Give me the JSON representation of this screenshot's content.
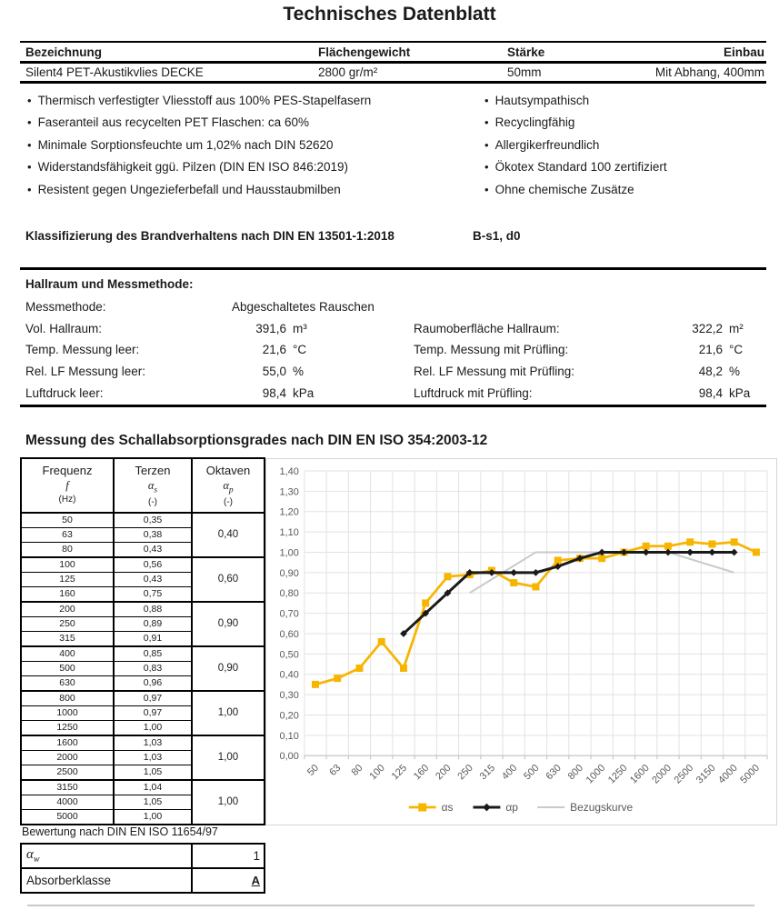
{
  "page": {
    "title": "Technisches Datenblatt"
  },
  "header_table": {
    "columns": [
      "Bezeichnung",
      "Flächengewicht",
      "Stärke",
      "Einbau"
    ],
    "values": [
      "Silent4 PET-Akustikvlies DECKE",
      "2800 gr/m²",
      "50mm",
      "Mit Abhang, 400mm"
    ]
  },
  "features": {
    "left": [
      "Thermisch verfestigter Vliesstoff aus 100% PES-Stapelfasern",
      "Faseranteil aus recycelten PET Flaschen: ca 60%",
      "Minimale Sorptionsfeuchte um 1,02% nach DIN 52620",
      "Widerstandsfähigkeit ggü. Pilzen (DIN EN ISO 846:2019)",
      "Resistent gegen Ungezieferbefall und Hausstaubmilben"
    ],
    "right": [
      "Hautsympathisch",
      "Recyclingfähig",
      "Allergikerfreundlich",
      "Ökotex Standard 100 zertifiziert",
      "Ohne chemische Zusätze"
    ]
  },
  "classification": {
    "label": "Klassifizierung des Brandverhaltens nach DIN EN 13501-1:2018",
    "value": "B-s1, d0"
  },
  "hallraum": {
    "title": "Hallraum und Messmethode:",
    "messmethode": {
      "label": "Messmethode:",
      "value": "Abgeschaltetes Rauschen"
    },
    "rows": [
      {
        "left_label": "Vol. Hallraum:",
        "left_value": "391,6",
        "left_unit": "m³",
        "right_label": "Raumoberfläche Hallraum:",
        "right_value": "322,2",
        "right_unit": "m²"
      },
      {
        "left_label": "Temp. Messung leer:",
        "left_value": "21,6",
        "left_unit": "°C",
        "right_label": "Temp. Messung mit Prüfling:",
        "right_value": "21,6",
        "right_unit": "°C"
      },
      {
        "left_label": "Rel. LF Messung leer:",
        "left_value": "55,0",
        "left_unit": "%",
        "right_label": "Rel. LF Messung mit Prüfling:",
        "right_value": "48,2",
        "right_unit": "%"
      },
      {
        "left_label": "Luftdruck leer:",
        "left_value": "98,4",
        "left_unit": "kPa",
        "right_label": "Luftdruck mit Prüfling:",
        "right_value": "98,4",
        "right_unit": "kPa"
      }
    ]
  },
  "absorption_section": {
    "title": "Messung des Schallabsorptionsgrades nach DIN EN ISO 354:2003-12"
  },
  "frequency_table": {
    "header": {
      "col1": {
        "line1": "Frequenz",
        "line2": "f",
        "line3": "(Hz)"
      },
      "col2": {
        "line1": "Terzen",
        "symbol": "α",
        "sub": "s",
        "line3": "(-)"
      },
      "col3": {
        "line1": "Oktaven",
        "symbol": "α",
        "sub": "p",
        "line3": "(-)"
      }
    },
    "groups": [
      {
        "rows": [
          [
            "50",
            "0,35"
          ],
          [
            "63",
            "0,38"
          ],
          [
            "80",
            "0,43"
          ]
        ],
        "oktave": "0,40"
      },
      {
        "rows": [
          [
            "100",
            "0,56"
          ],
          [
            "125",
            "0,43"
          ],
          [
            "160",
            "0,75"
          ]
        ],
        "oktave": "0,60"
      },
      {
        "rows": [
          [
            "200",
            "0,88"
          ],
          [
            "250",
            "0,89"
          ],
          [
            "315",
            "0,91"
          ]
        ],
        "oktave": "0,90"
      },
      {
        "rows": [
          [
            "400",
            "0,85"
          ],
          [
            "500",
            "0,83"
          ],
          [
            "630",
            "0,96"
          ]
        ],
        "oktave": "0,90"
      },
      {
        "rows": [
          [
            "800",
            "0,97"
          ],
          [
            "1000",
            "0,97"
          ],
          [
            "1250",
            "1,00"
          ]
        ],
        "oktave": "1,00"
      },
      {
        "rows": [
          [
            "1600",
            "1,03"
          ],
          [
            "2000",
            "1,03"
          ],
          [
            "2500",
            "1,05"
          ]
        ],
        "oktave": "1,00"
      },
      {
        "rows": [
          [
            "3150",
            "1,04"
          ],
          [
            "4000",
            "1,05"
          ],
          [
            "5000",
            "1,00"
          ]
        ],
        "oktave": "1,00"
      }
    ]
  },
  "bewertung": {
    "title": "Bewertung nach DIN EN ISO 11654/97",
    "rows": [
      {
        "symbol": "α",
        "sub": "w",
        "value": "1",
        "emphasis": false
      },
      {
        "label": "Absorberklasse",
        "value": "A",
        "emphasis": true
      }
    ]
  },
  "chart_data": {
    "type": "line",
    "title": "",
    "xlabel": "",
    "ylabel": "",
    "categories": [
      "50",
      "63",
      "80",
      "100",
      "125",
      "160",
      "200",
      "250",
      "315",
      "400",
      "500",
      "630",
      "800",
      "1000",
      "1250",
      "1600",
      "2000",
      "2500",
      "3150",
      "4000",
      "5000"
    ],
    "ylim": [
      0,
      1.4
    ],
    "ytick_step": 0.1,
    "grid": true,
    "legend_position": "bottom",
    "grid_color": "#e2e2e2",
    "axis_color": "#bfbfbf",
    "label_color": "#595959",
    "series": [
      {
        "name": "αs",
        "color": "#f7b500",
        "marker": "square",
        "stroke_width": 2.75,
        "values": [
          0.35,
          0.38,
          0.43,
          0.56,
          0.43,
          0.75,
          0.88,
          0.89,
          0.91,
          0.85,
          0.83,
          0.96,
          0.97,
          0.97,
          1.0,
          1.03,
          1.03,
          1.05,
          1.04,
          1.05,
          1.0
        ]
      },
      {
        "name": "αp",
        "color": "#1a1a1a",
        "marker": "diamond",
        "stroke_width": 3,
        "values": [
          null,
          null,
          null,
          null,
          0.6,
          0.7,
          0.8,
          0.9,
          0.9,
          0.9,
          0.9,
          0.93,
          0.97,
          1.0,
          1.0,
          1.0,
          1.0,
          1.0,
          1.0,
          1.0,
          null
        ]
      },
      {
        "name": "Bezugskurve",
        "color": "#c9c9c9",
        "marker": "none",
        "stroke_width": 2,
        "values": [
          null,
          null,
          null,
          null,
          null,
          null,
          null,
          0.8,
          null,
          null,
          1.0,
          null,
          null,
          1.0,
          null,
          null,
          1.0,
          null,
          null,
          0.9,
          null
        ]
      }
    ]
  }
}
